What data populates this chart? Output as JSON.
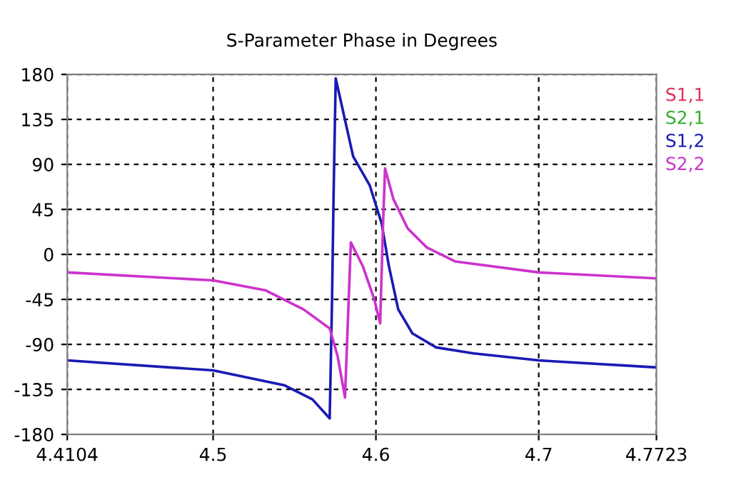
{
  "chart_data": {
    "type": "line",
    "title": "S-Parameter Phase in Degrees",
    "xlim": [
      4.4104,
      4.7723
    ],
    "xticks": [
      4.4104,
      4.5,
      4.6,
      4.7,
      4.7723
    ],
    "ylim": [
      -180,
      180
    ],
    "yticks": [
      -180,
      -135,
      -90,
      -45,
      0,
      45,
      90,
      135,
      180
    ],
    "grid": true,
    "legend": "right",
    "marker": "none",
    "line_style": "solid",
    "series": [
      {
        "name": "S1,1",
        "color": "#e0305a"
      },
      {
        "name": "S2,1",
        "color": "#30b030"
      },
      {
        "name": "S1,2",
        "color": "#1a1ab4",
        "x": [
          4.4104,
          4.5,
          4.544,
          4.561,
          4.5716,
          4.573,
          4.574,
          4.5753,
          4.586,
          4.5962,
          4.6035,
          4.608,
          4.6137,
          4.6224,
          4.637,
          4.66,
          4.7,
          4.7723
        ],
        "values": [
          -106,
          -116,
          -131,
          -145,
          -164,
          -50,
          60,
          176,
          98,
          69,
          31,
          -12,
          -55,
          -79,
          -93,
          -99,
          -106,
          -113
        ]
      },
      {
        "name": "S2,2",
        "color": "#cc33cc",
        "x": [
          4.4104,
          4.5,
          4.5323,
          4.5555,
          4.5716,
          4.5765,
          4.581,
          4.5846,
          4.592,
          4.599,
          4.6026,
          4.6044,
          4.6056,
          4.6108,
          4.6195,
          4.6312,
          4.6486,
          4.7,
          4.7723
        ],
        "values": [
          -18,
          -26,
          -36,
          -55,
          -74,
          -102,
          -143,
          12,
          -12,
          -45,
          -69,
          31,
          86,
          55,
          26,
          7,
          -7,
          -18,
          -24
        ]
      }
    ]
  }
}
